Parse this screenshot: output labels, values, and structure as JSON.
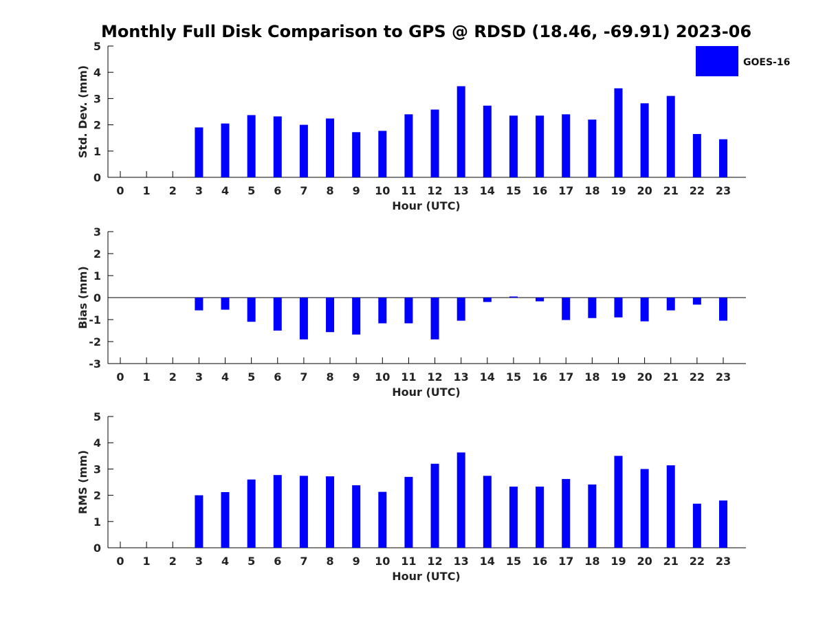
{
  "title": "Monthly Full Disk Comparison to GPS @ RDSD (18.46, -69.91) 2023-06",
  "legend": {
    "label": "GOES-16",
    "color": "#0000ff",
    "placement": "top-right"
  },
  "chart_data": [
    {
      "type": "bar",
      "xlabel": "Hour (UTC)",
      "ylabel": "Std. Dev. (mm)",
      "ylim": [
        0,
        5
      ],
      "yticks": [
        0,
        1,
        2,
        3,
        4,
        5
      ],
      "categories": [
        "0",
        "1",
        "2",
        "3",
        "4",
        "5",
        "6",
        "7",
        "8",
        "9",
        "10",
        "11",
        "12",
        "13",
        "14",
        "15",
        "16",
        "17",
        "18",
        "19",
        "20",
        "21",
        "22",
        "23"
      ],
      "series": [
        {
          "name": "GOES-16",
          "values": [
            null,
            null,
            null,
            1.9,
            2.05,
            2.37,
            2.32,
            2.0,
            2.24,
            1.72,
            1.77,
            2.4,
            2.58,
            3.47,
            2.73,
            2.35,
            2.35,
            2.4,
            2.2,
            3.39,
            2.82,
            3.1,
            1.65,
            1.45
          ]
        }
      ]
    },
    {
      "type": "bar",
      "xlabel": "Hour (UTC)",
      "ylabel": "Bias (mm)",
      "ylim": [
        -3,
        3
      ],
      "yticks": [
        -3,
        -2,
        -1,
        0,
        1,
        2,
        3
      ],
      "zero_line": true,
      "categories": [
        "0",
        "1",
        "2",
        "3",
        "4",
        "5",
        "6",
        "7",
        "8",
        "9",
        "10",
        "11",
        "12",
        "13",
        "14",
        "15",
        "16",
        "17",
        "18",
        "19",
        "20",
        "21",
        "22",
        "23"
      ],
      "series": [
        {
          "name": "GOES-16",
          "values": [
            null,
            null,
            null,
            -0.58,
            -0.55,
            -1.1,
            -1.5,
            -1.9,
            -1.57,
            -1.68,
            -1.17,
            -1.17,
            -1.9,
            -1.05,
            -0.2,
            0.05,
            -0.17,
            -1.02,
            -0.93,
            -0.9,
            -1.08,
            -0.58,
            -0.32,
            -1.05
          ]
        }
      ]
    },
    {
      "type": "bar",
      "xlabel": "Hour (UTC)",
      "ylabel": "RMS (mm)",
      "ylim": [
        0,
        5
      ],
      "yticks": [
        0,
        1,
        2,
        3,
        4,
        5
      ],
      "categories": [
        "0",
        "1",
        "2",
        "3",
        "4",
        "5",
        "6",
        "7",
        "8",
        "9",
        "10",
        "11",
        "12",
        "13",
        "14",
        "15",
        "16",
        "17",
        "18",
        "19",
        "20",
        "21",
        "22",
        "23"
      ],
      "series": [
        {
          "name": "GOES-16",
          "values": [
            null,
            null,
            null,
            2.0,
            2.12,
            2.6,
            2.77,
            2.74,
            2.72,
            2.38,
            2.13,
            2.7,
            3.2,
            3.63,
            2.74,
            2.33,
            2.33,
            2.62,
            2.41,
            3.5,
            3.0,
            3.14,
            1.68,
            1.8
          ]
        }
      ]
    }
  ]
}
